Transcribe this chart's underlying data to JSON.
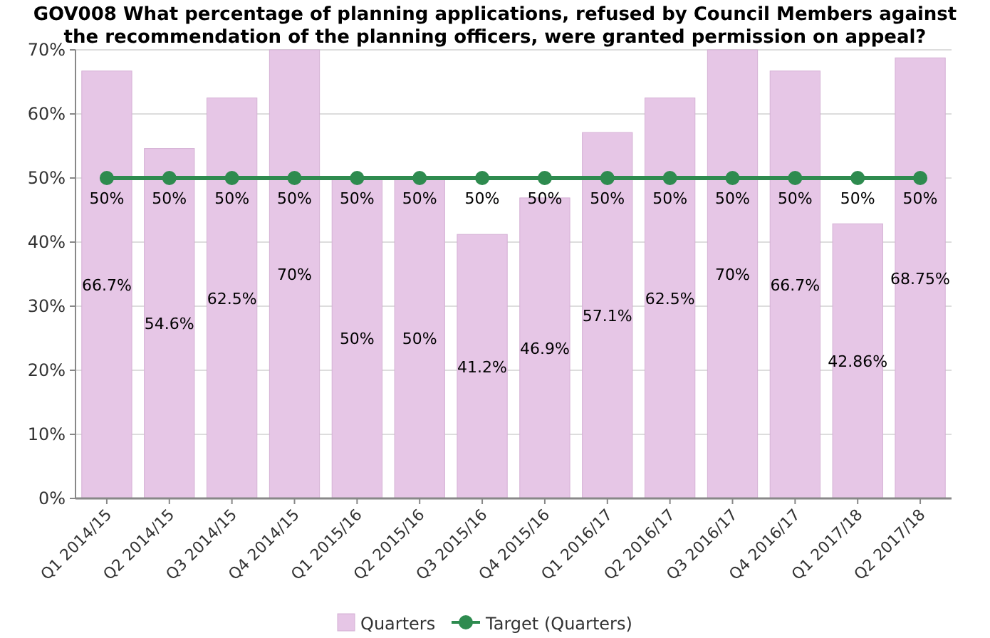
{
  "chart_data": {
    "type": "bar",
    "title": "GOV008 What percentage of planning applications, refused by Council Members against the recommendation of the planning officers, were granted permission on appeal?",
    "categories": [
      "Q1 2014/15",
      "Q2 2014/15",
      "Q3 2014/15",
      "Q4 2014/15",
      "Q1 2015/16",
      "Q2 2015/16",
      "Q3 2015/16",
      "Q4 2015/16",
      "Q1 2016/17",
      "Q2 2016/17",
      "Q3 2016/17",
      "Q4 2016/17",
      "Q1 2017/18",
      "Q2 2017/18"
    ],
    "series": [
      {
        "name": "Quarters",
        "color": "#e6c6e6",
        "values": [
          66.7,
          54.6,
          62.5,
          70,
          50,
          50,
          41.2,
          46.9,
          57.1,
          62.5,
          70,
          66.7,
          42.86,
          68.75
        ],
        "value_labels": [
          "66.7%",
          "54.6%",
          "62.5%",
          "70%",
          "50%",
          "50%",
          "41.2%",
          "46.9%",
          "57.1%",
          "62.5%",
          "70%",
          "66.7%",
          "42.86%",
          "68.75%"
        ]
      },
      {
        "name": "Target (Quarters)",
        "type": "line",
        "color": "#2e8b4f",
        "values": [
          50,
          50,
          50,
          50,
          50,
          50,
          50,
          50,
          50,
          50,
          50,
          50,
          50,
          50
        ],
        "value_labels": [
          "50%",
          "50%",
          "50%",
          "50%",
          "50%",
          "50%",
          "50%",
          "50%",
          "50%",
          "50%",
          "50%",
          "50%",
          "50%",
          "50%"
        ]
      }
    ],
    "ylim": [
      0,
      70
    ],
    "yticks": [
      {
        "value": 0,
        "label": "0%"
      },
      {
        "value": 10,
        "label": "10%"
      },
      {
        "value": 20,
        "label": "20%"
      },
      {
        "value": 30,
        "label": "30%"
      },
      {
        "value": 40,
        "label": "40%"
      },
      {
        "value": 50,
        "label": "50%"
      },
      {
        "value": 60,
        "label": "60%"
      },
      {
        "value": 70,
        "label": "70%"
      }
    ],
    "grid": "y",
    "legend": "bottom",
    "marker": "circle"
  }
}
